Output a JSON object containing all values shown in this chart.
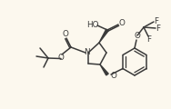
{
  "bg_color": "#fcf8ee",
  "line_color": "#3a3a3a",
  "line_width": 1.1,
  "font_size": 5.8
}
